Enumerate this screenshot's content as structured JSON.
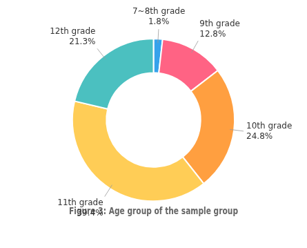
{
  "chart_data": {
    "type": "doughnut",
    "title": "Figure 3: Age group of the sample group",
    "categories": [
      "7~8th grade",
      "9th grade",
      "10th grade",
      "11th grade",
      "12th grade"
    ],
    "values": [
      1.8,
      12.8,
      24.8,
      39.4,
      21.3
    ],
    "data_labels": true,
    "value_labels": [
      "1.8%",
      "12.8%",
      "24.8%",
      "39.4%",
      "21.3%"
    ]
  }
}
